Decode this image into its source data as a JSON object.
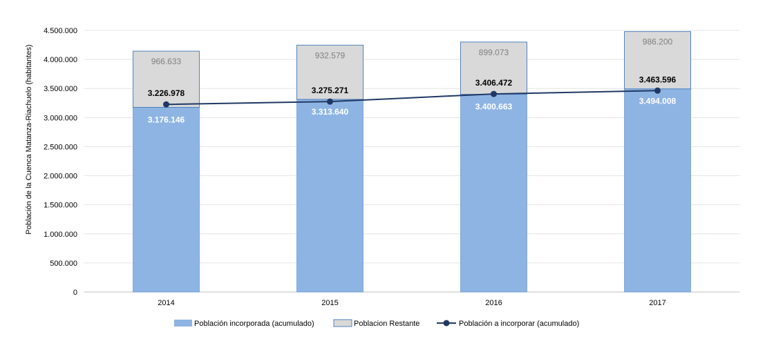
{
  "chart_data": {
    "type": "bar",
    "stacked": true,
    "categories": [
      "2014",
      "2015",
      "2016",
      "2017"
    ],
    "ylabel": "Población de la Cuenca Matanza-Riachuelo (habitantes)",
    "ylim": [
      0,
      4500000
    ],
    "yticks": [
      0,
      500000,
      1000000,
      1500000,
      2000000,
      2500000,
      3000000,
      3500000,
      4000000,
      4500000
    ],
    "ytick_labels": [
      "0",
      "500.000",
      "1.000.000",
      "1.500.000",
      "2.000.000",
      "2.500.000",
      "3.000.000",
      "3.500.000",
      "4.000.000",
      "4.500.000"
    ],
    "grid": true,
    "legend_position": "bottom",
    "series": [
      {
        "name": "Población incorporada (acumulado)",
        "type": "bar",
        "color": "#8eb4e3",
        "values": [
          3176146,
          3313640,
          3400663,
          3494008
        ],
        "labels": [
          "3.176.146",
          "3.313.640",
          "3.400.663",
          "3.494.008"
        ]
      },
      {
        "name": "Poblacion Restante",
        "type": "bar",
        "color": "#d9d9d9",
        "values": [
          966633,
          932579,
          899073,
          986200
        ],
        "labels": [
          "966.633",
          "932.579",
          "899.073",
          "986.200"
        ]
      },
      {
        "name": "Población a incorporar (acumulado)",
        "type": "line",
        "color": "#1f3864",
        "values": [
          3226978,
          3275271,
          3406472,
          3463596
        ],
        "labels": [
          "3.226.978",
          "3.275.271",
          "3.406.472",
          "3.463.596"
        ]
      }
    ]
  }
}
